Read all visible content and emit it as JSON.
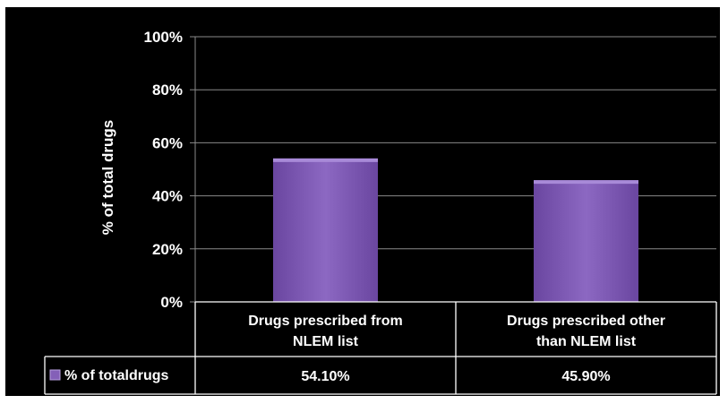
{
  "chart_data": {
    "type": "bar",
    "categories": [
      "Drugs prescribed from NLEM list",
      "Drugs prescribed other than NLEM list"
    ],
    "category_lines": [
      [
        "Drugs prescribed from",
        "NLEM list"
      ],
      [
        "Drugs prescribed other",
        "than NLEM list"
      ]
    ],
    "series": [
      {
        "name": "% of totaldrugs",
        "values": [
          54.1,
          45.9
        ],
        "value_labels": [
          "54.10%",
          "45.90%"
        ]
      }
    ],
    "ylabel": "% of total drugs",
    "ylim": [
      0,
      100
    ],
    "yticks": [
      0,
      20,
      40,
      60,
      80,
      100
    ],
    "ytick_labels": [
      "0%",
      "20%",
      "40%",
      "60%",
      "80%",
      "100%"
    ],
    "grid": true,
    "legend": "data-table",
    "bar_color": "#8460b8",
    "background": "#000000",
    "text_color": "#ffffff"
  }
}
